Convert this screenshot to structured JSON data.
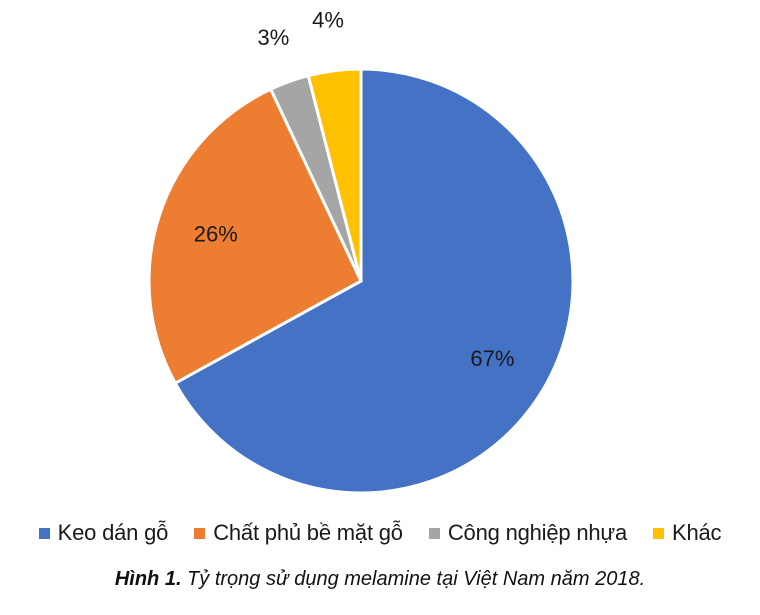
{
  "chart_data": {
    "type": "pie",
    "categories": [
      "Keo dán gỗ",
      "Chất phủ bề mặt gỗ",
      "Công nghiệp nhựa",
      "Khác"
    ],
    "values": [
      67,
      26,
      3,
      4
    ],
    "labels": [
      "67%",
      "26%",
      "3%",
      "4%"
    ],
    "colors": [
      "#4472C4",
      "#ED7D31",
      "#A5A5A5",
      "#FFC000"
    ],
    "legend_position": "bottom",
    "start": "top, clockwise"
  },
  "caption": {
    "prefix": "Hình 1.",
    "text": " Tỷ trọng sử dụng melamine tại Việt Nam năm 2018."
  }
}
